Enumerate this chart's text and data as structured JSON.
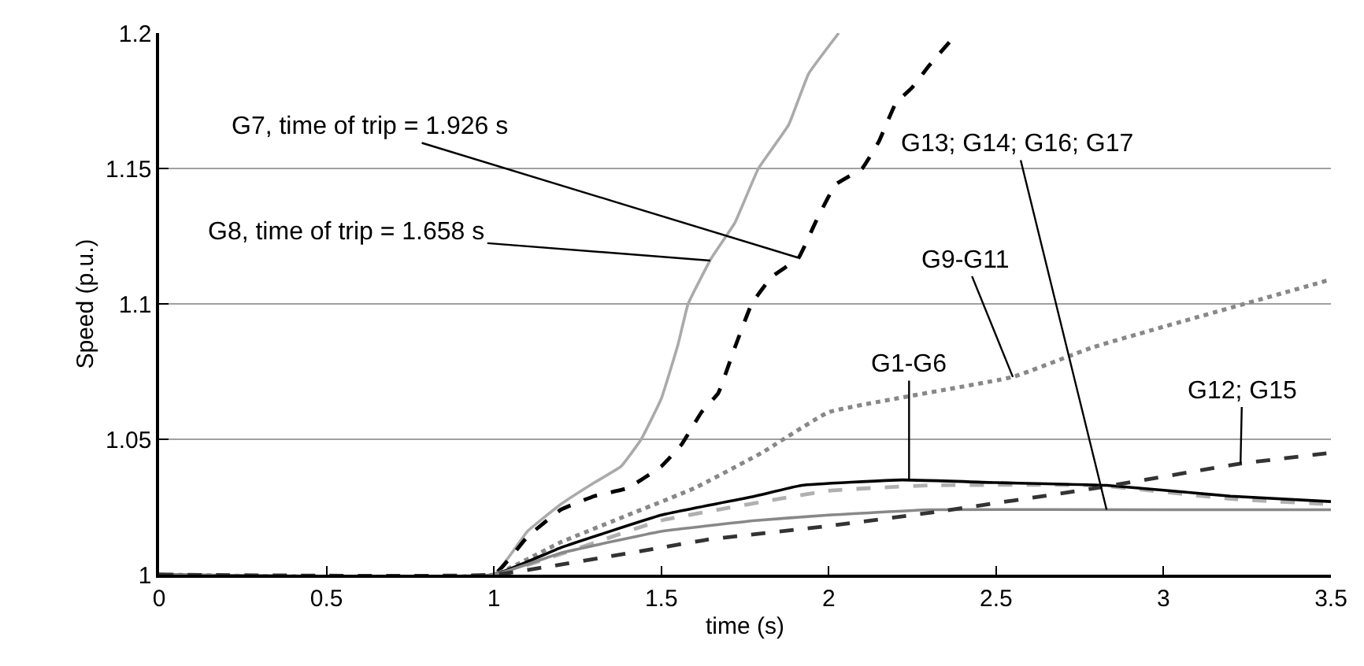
{
  "chart_data": {
    "type": "line",
    "xlabel": "time (s)",
    "ylabel": "Speed (p.u.)",
    "xlim": [
      0,
      3.5
    ],
    "xticks": [
      0,
      0.5,
      1,
      1.5,
      2,
      2.5,
      3,
      3.5
    ],
    "ylim": [
      1,
      1.2
    ],
    "yticks": [
      1,
      1.05,
      1.1,
      1.15,
      1.2
    ],
    "grid": "y",
    "series": [
      {
        "color": "#aaaaaa",
        "line_style": "solid",
        "x": [
          0,
          1,
          1.1,
          1.2,
          1.3,
          1.38,
          1.44,
          1.5,
          1.55,
          1.58,
          1.65,
          1.72,
          1.79,
          1.88,
          1.94,
          2.03
        ],
        "values": [
          1,
          1,
          1.016,
          1.026,
          1.034,
          1.04,
          1.05,
          1.065,
          1.085,
          1.1,
          1.117,
          1.13,
          1.15,
          1.166,
          1.185,
          1.2
        ]
      },
      {
        "color": "#000000",
        "line_style": "dashed",
        "x": [
          0,
          1,
          1.1,
          1.2,
          1.3,
          1.4,
          1.5,
          1.56,
          1.62,
          1.67,
          1.72,
          1.77,
          1.83,
          1.91,
          1.96,
          2.02,
          2.1,
          2.15,
          2.2,
          2.25,
          2.3,
          2.37
        ],
        "values": [
          1,
          1,
          1.014,
          1.024,
          1.029,
          1.032,
          1.04,
          1.048,
          1.06,
          1.067,
          1.084,
          1.1,
          1.11,
          1.117,
          1.13,
          1.144,
          1.15,
          1.16,
          1.174,
          1.18,
          1.188,
          1.198
        ]
      },
      {
        "color": "#888888",
        "line_style": "dotted",
        "x": [
          0,
          1,
          1.2,
          1.4,
          1.6,
          1.8,
          2.0,
          2.55,
          2.79,
          3.5
        ],
        "values": [
          1,
          1,
          1.012,
          1.022,
          1.032,
          1.045,
          1.06,
          1.073,
          1.084,
          1.109
        ]
      },
      {
        "color": "#b0b0b0",
        "line_style": "dashed",
        "x": [
          0,
          1,
          1.5,
          2,
          2.3,
          2.8,
          3.2,
          3.5
        ],
        "values": [
          1,
          1,
          1.02,
          1.031,
          1.033,
          1.033,
          1.028,
          1.026
        ]
      },
      {
        "color": "#000000",
        "line_style": "solid",
        "x": [
          0,
          1,
          1.2,
          1.5,
          1.78,
          1.92,
          2.22,
          2.5,
          2.83,
          3.2,
          3.5
        ],
        "values": [
          1,
          1,
          1.01,
          1.022,
          1.029,
          1.033,
          1.035,
          1.034,
          1.033,
          1.029,
          1.027
        ]
      },
      {
        "color": "#888888",
        "line_style": "solid",
        "x": [
          0,
          1,
          1.2,
          1.5,
          1.78,
          2.0,
          2.3,
          3.0,
          3.5
        ],
        "values": [
          1,
          1,
          1.008,
          1.016,
          1.02,
          1.022,
          1.024,
          1.024,
          1.024
        ]
      },
      {
        "color": "#333333",
        "line_style": "dashed",
        "x": [
          0,
          1,
          1.5,
          1.64,
          2.0,
          2.31,
          2.8,
          3.23,
          3.5
        ],
        "values": [
          1,
          1,
          1.01,
          1.013,
          1.018,
          1.023,
          1.032,
          1.041,
          1.045
        ]
      }
    ],
    "annotations": [
      {
        "text": "G7, time of trip = 1.926 s",
        "x": 1.91,
        "y": 1.117
      },
      {
        "text": "G8, time of trip = 1.658 s",
        "x": 1.646,
        "y": 1.116
      },
      {
        "text": "G13; G14; G16; G17",
        "x": 2.83,
        "y": 1.024
      },
      {
        "text": "G9-G11",
        "x": 2.55,
        "y": 1.073
      },
      {
        "text": "G1-G6",
        "x": 2.24,
        "y": 1.035
      },
      {
        "text": "G12; G15",
        "x": 3.23,
        "y": 1.041
      }
    ]
  }
}
